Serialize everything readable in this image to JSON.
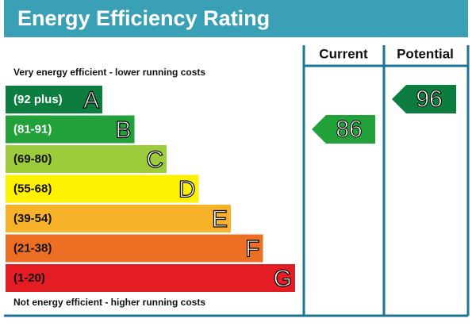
{
  "title": "Energy Efficiency Rating",
  "header": {
    "current": "Current",
    "potential": "Potential"
  },
  "top_note": "Very energy efficient - lower running costs",
  "bottom_note": "Not energy efficient - higher running costs",
  "bands": [
    {
      "range": "(92 plus)",
      "letter": "A"
    },
    {
      "range": "(81-91)",
      "letter": "B"
    },
    {
      "range": "(69-80)",
      "letter": "C"
    },
    {
      "range": "(55-68)",
      "letter": "D"
    },
    {
      "range": "(39-54)",
      "letter": "E"
    },
    {
      "range": "(21-38)",
      "letter": "F"
    },
    {
      "range": "(1-20)",
      "letter": "G"
    }
  ],
  "current": {
    "value": "86"
  },
  "potential": {
    "value": "96"
  }
}
